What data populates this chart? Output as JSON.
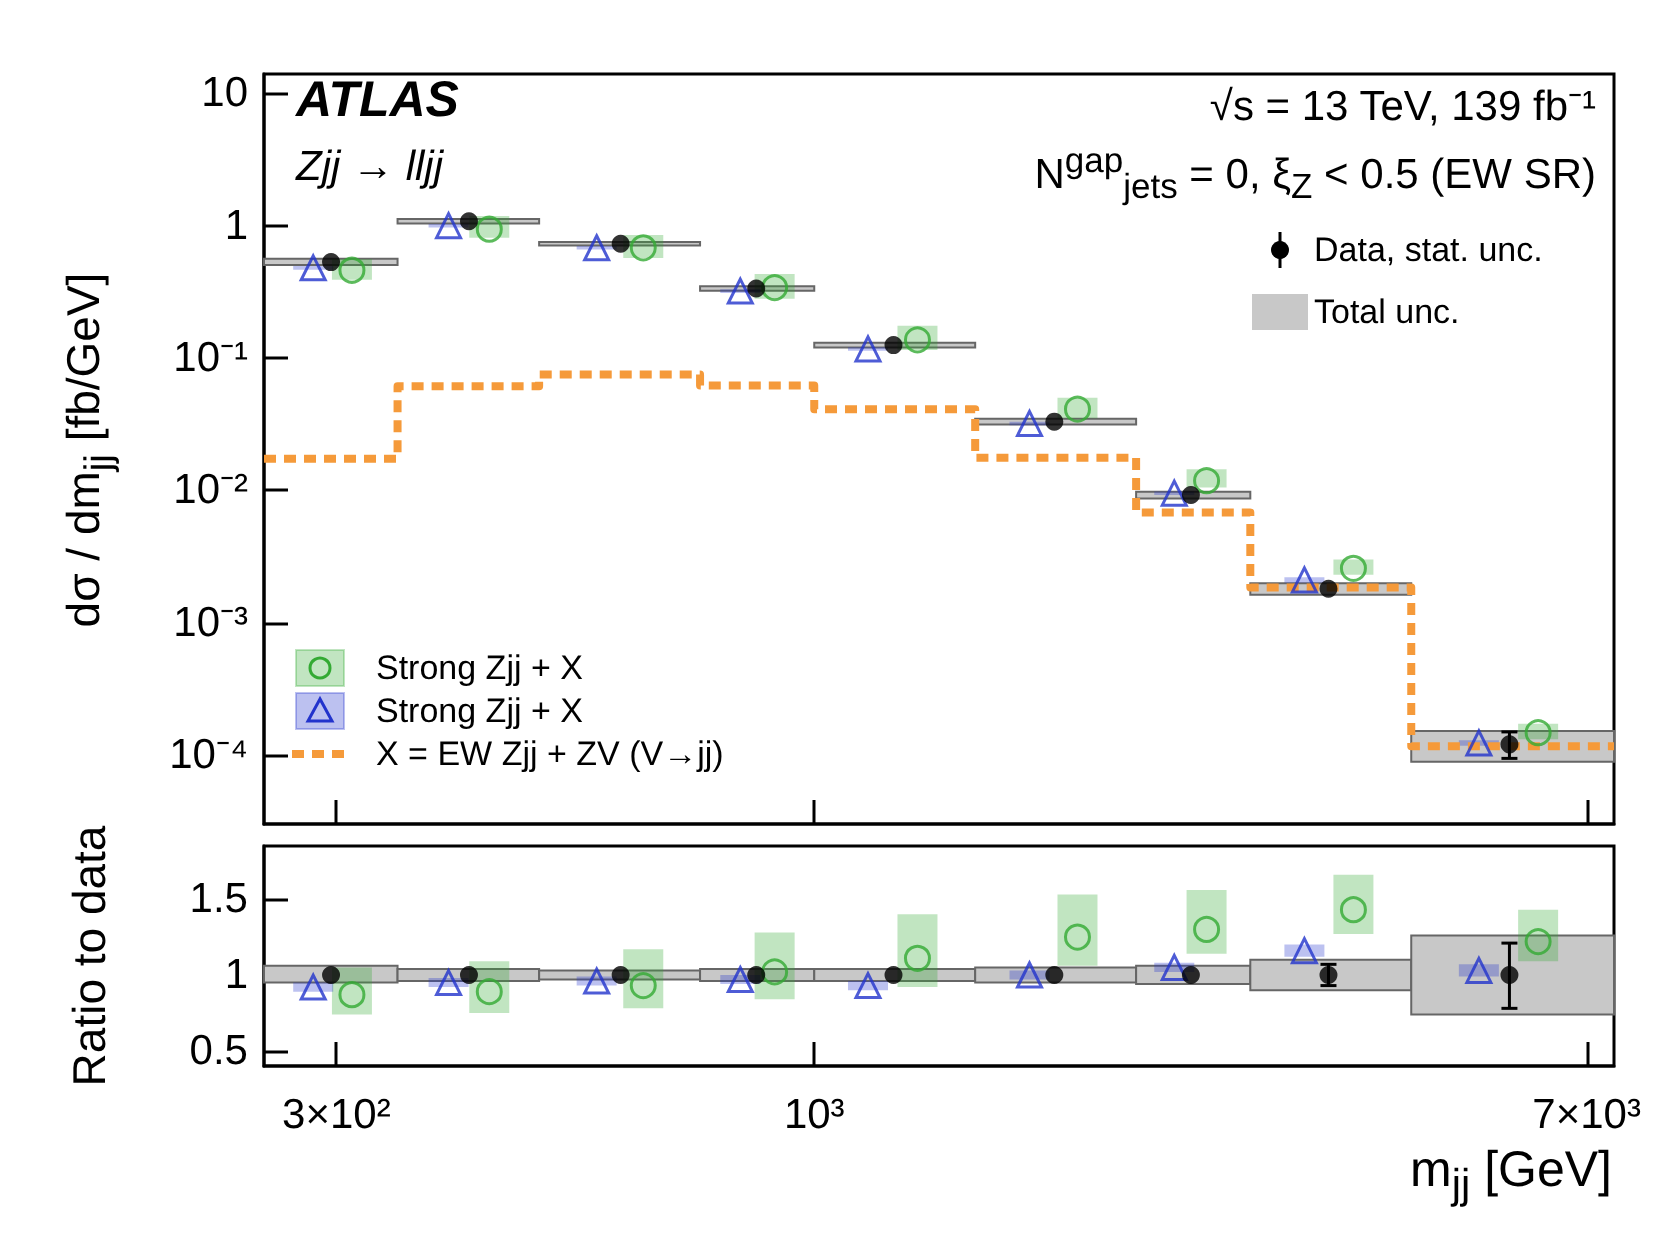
{
  "chart_data": [
    {
      "type": "scatter",
      "ylabel": "dσ / dm$_{jj}$  [fb/GeV]",
      "annotations": [
        "ATLAS",
        "Zjj → lljj",
        "√s = 13 TeV, 139 fb⁻¹",
        "N$^{gap}$$_{jets}$ = 0, ξ$_{Z}$ < 0.5 (EW SR)"
      ],
      "log": "xy",
      "xlim": [
        250,
        7500
      ],
      "xticks": [
        {
          "value": 300,
          "label": null
        },
        {
          "value": 1000,
          "label": null
        },
        {
          "value": 7000,
          "label": null
        }
      ],
      "ylim": [
        3e-05,
        14
      ],
      "yticks": [
        {
          "value": 0.0001,
          "label": "10⁻⁴"
        },
        {
          "value": 0.001,
          "label": "10⁻³"
        },
        {
          "value": 0.01,
          "label": "10⁻²"
        },
        {
          "value": 0.1,
          "label": "10⁻¹"
        },
        1,
        10
      ],
      "tick_labels": "y",
      "legend": "bottom left",
      "series": [
        {
          "name": "Data, stat. unc.",
          "marker": "circle",
          "color": "#000000",
          "x": [
            296,
            419,
            614,
            864,
            1221,
            1831,
            2583,
            3653,
            5763
          ],
          "values": [
            0.53,
            1.08,
            0.73,
            0.335,
            0.125,
            0.033,
            0.0092,
            0.0018,
            0.00012
          ],
          "errors": [
            null,
            null,
            null,
            null,
            null,
            null,
            null,
            null,
            [
              9.4e-05,
              0.000149
            ]
          ]
        },
        {
          "name": "Total unc.",
          "type": "histogram",
          "color": "#c8c8c8",
          "bins": [
            250,
            350,
            500,
            750,
            1000,
            1500,
            2250,
            3000,
            4500,
            7500
          ],
          "base": [
            0.5035,
            1.0368,
            0.7081,
            0.3216,
            0.12,
            0.03135,
            0.008648,
            0.00162,
            8.88e-05
          ],
          "values": [
            0.0583,
            0.0864,
            0.0438,
            0.0268,
            0.01,
            0.0033,
            0.001104,
            0.00036,
            6.24e-05
          ]
        },
        {
          "name": "Strong Zjj + X",
          "marker": "circle",
          "color": "#33aa33",
          "x": [
            312,
            441,
            650,
            905,
            1297,
            1941,
            2687,
            3890,
            6195
          ],
          "values": [
            0.46,
            0.94,
            0.68,
            0.34,
            0.137,
            0.041,
            0.0118,
            0.00257,
            0.000147
          ],
          "errors": [
            [
              0.39,
              0.56
            ],
            [
              0.81,
              1.18
            ],
            [
              0.57,
              0.85
            ],
            [
              0.28,
              0.43
            ],
            [
              0.115,
              0.175
            ],
            [
              0.035,
              0.05
            ],
            [
              0.0105,
              0.0144
            ],
            [
              0.0023,
              0.003
            ],
            [
              0.000131,
              0.000172
            ]
          ]
        },
        {
          "name": "Strong Zjj + X",
          "marker": "triangle",
          "color": "#2233cc",
          "x": [
            283,
            398,
            578,
            830,
            1145,
            1720,
            2477,
            3438,
            5336
          ],
          "values": [
            0.48,
            1.0,
            0.68,
            0.32,
            0.117,
            0.032,
            0.0095,
            0.0021,
            0.000123
          ],
          "errors": [
            0.015,
            0.03,
            0.02,
            0.01,
            0.0035,
            0.001,
            0.0003,
            0.0001,
            6e-06
          ]
        },
        {
          "name": "X = EW Zjj + ZV (V→jj)",
          "type": "step",
          "line_style": "dashed",
          "color": "#f59a3a",
          "x": [
            250,
            350,
            500,
            750,
            1000,
            1500,
            2250,
            3000,
            4500,
            7500
          ],
          "values": [
            0.0173,
            0.061,
            0.075,
            0.062,
            0.041,
            0.0176,
            0.0068,
            0.00184,
            0.000116,
            0.000116
          ]
        }
      ]
    },
    {
      "type": "scatter",
      "xlabel": "m$_{jj}$  [GeV]",
      "ylabel": "Ratio to data",
      "log": "x",
      "xlim": [
        250,
        7500
      ],
      "xticks": [
        {
          "value": 300,
          "label": "3×10²"
        },
        {
          "value": 1000,
          "label": "10³"
        },
        {
          "value": 7000,
          "label": "7×10³"
        }
      ],
      "ylim": [
        0.4,
        1.85
      ],
      "yticks": [
        0.5,
        1,
        1.5
      ],
      "series": [
        {
          "marker": "circle",
          "color": "#000000",
          "x": [
            296,
            419,
            614,
            864,
            1221,
            1831,
            2583,
            3653,
            5763
          ],
          "values": [
            1,
            1,
            1,
            1,
            1,
            1,
            1,
            1,
            1
          ],
          "errors": [
            null,
            null,
            null,
            null,
            null,
            null,
            null,
            [
              0.93,
              1.07
            ],
            [
              0.78,
              1.21
            ]
          ]
        },
        {
          "type": "histogram",
          "color": "#c8c8c8",
          "bins": [
            250,
            350,
            500,
            750,
            1000,
            1500,
            2250,
            3000,
            4500,
            7500
          ],
          "base": [
            0.95,
            0.96,
            0.97,
            0.96,
            0.96,
            0.95,
            0.94,
            0.9,
            0.74
          ],
          "values": [
            0.11,
            0.08,
            0.06,
            0.08,
            0.08,
            0.1,
            0.12,
            0.2,
            0.52
          ]
        },
        {
          "marker": "circle",
          "color": "#33aa33",
          "x": [
            312,
            441,
            650,
            905,
            1297,
            1941,
            2687,
            3890,
            6195
          ],
          "values": [
            0.87,
            0.89,
            0.93,
            1.02,
            1.11,
            1.25,
            1.3,
            1.43,
            1.22
          ],
          "errors": [
            [
              0.74,
              1.05
            ],
            [
              0.75,
              1.09
            ],
            [
              0.78,
              1.17
            ],
            [
              0.84,
              1.28
            ],
            [
              0.92,
              1.4
            ],
            [
              1.06,
              1.53
            ],
            [
              1.14,
              1.56
            ],
            [
              1.27,
              1.66
            ],
            [
              1.09,
              1.43
            ]
          ]
        },
        {
          "marker": "triangle",
          "color": "#2233cc",
          "x": [
            283,
            398,
            578,
            830,
            1145,
            1720,
            2477,
            3438,
            5336
          ],
          "values": [
            0.92,
            0.95,
            0.96,
            0.97,
            0.93,
            1.0,
            1.05,
            1.16,
            1.03
          ],
          "errors": [
            0.03,
            0.03,
            0.03,
            0.03,
            0.03,
            0.03,
            0.03,
            0.04,
            0.04
          ]
        }
      ]
    }
  ]
}
